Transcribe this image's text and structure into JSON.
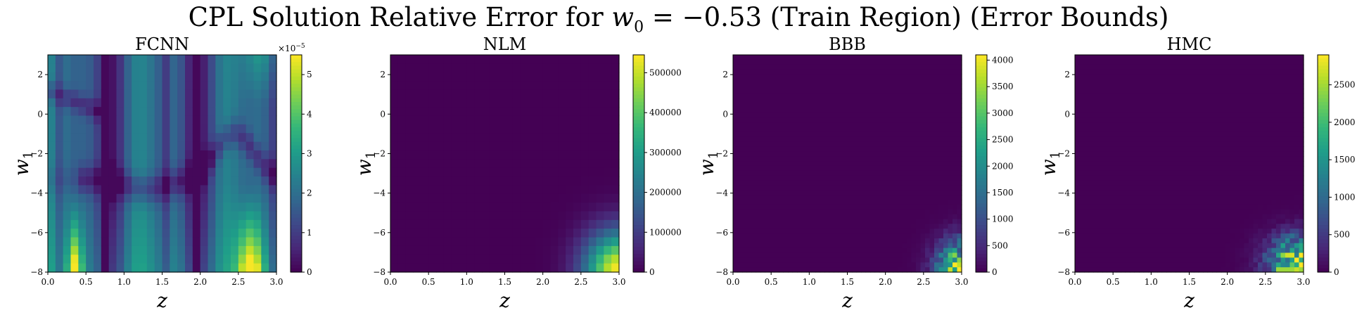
{
  "figure": {
    "title_prefix": "CPL Solution Relative Error for ",
    "title_math": "w",
    "title_math_sub": "0",
    "title_math_rest": " = −0.53",
    "title_suffix": " (Train Region) (Error Bounds)"
  },
  "colormap": [
    "#440154",
    "#482878",
    "#3e4989",
    "#31688e",
    "#26828e",
    "#1f9e89",
    "#35b779",
    "#6ece58",
    "#b5de2b",
    "#fde725"
  ],
  "chart_data": [
    {
      "type": "heatmap",
      "title": "FCNN",
      "xlabel": "z",
      "ylabel_base": "w",
      "ylabel_sub": "1",
      "xlim": [
        0,
        3
      ],
      "ylim": [
        -8,
        3
      ],
      "xticks": [
        0.0,
        0.5,
        1.0,
        1.5,
        2.0,
        2.5,
        3.0
      ],
      "xtick_labels": [
        "0.0",
        "0.5",
        "1.0",
        "1.5",
        "2.0",
        "2.5",
        "3.0"
      ],
      "yticks": [
        2,
        0,
        -2,
        -4,
        -6,
        -8
      ],
      "ytick_labels": [
        "2",
        "0",
        "−2",
        "−4",
        "−6",
        "−8"
      ],
      "grid": [
        30,
        25
      ],
      "colorbar": {
        "min": 0,
        "max": 5.5,
        "scale_label": "×10",
        "scale_exp": "−5",
        "ticks": [
          0,
          1,
          2,
          3,
          4,
          5
        ],
        "tick_labels": [
          "0",
          "1",
          "2",
          "3",
          "4",
          "5"
        ]
      },
      "pattern": "fcnn",
      "pattern_description": "vertical bands varying with z; dark stripes near z≈0.1, 0.75, 1.5; bright maxima near z≈0.35 and z≈2.65 at low w1; dark curved valley along w1≈-3 rising to w1≈-1 near z≈2.5"
    },
    {
      "type": "heatmap",
      "title": "NLM",
      "xlabel": "z",
      "ylabel_base": "w",
      "ylabel_sub": "1",
      "xlim": [
        0,
        3
      ],
      "ylim": [
        -8,
        3
      ],
      "xticks": [
        0.0,
        0.5,
        1.0,
        1.5,
        2.0,
        2.5,
        3.0
      ],
      "xtick_labels": [
        "0.0",
        "0.5",
        "1.0",
        "1.5",
        "2.0",
        "2.5",
        "3.0"
      ],
      "yticks": [
        2,
        0,
        -2,
        -4,
        -6,
        -8
      ],
      "ytick_labels": [
        "2",
        "0",
        "−2",
        "−4",
        "−6",
        "−8"
      ],
      "grid": [
        30,
        25
      ],
      "colorbar": {
        "min": 0,
        "max": 545000,
        "scale_label": "",
        "scale_exp": "",
        "ticks": [
          0,
          100000,
          200000,
          300000,
          400000,
          500000
        ],
        "tick_labels": [
          "0",
          "100000",
          "200000",
          "300000",
          "400000",
          "500000"
        ]
      },
      "pattern": "nlm",
      "pattern_description": "near zero everywhere; smooth growth toward the corner z=3, w1=-8 where it peaks"
    },
    {
      "type": "heatmap",
      "title": "BBB",
      "xlabel": "z",
      "ylabel_base": "w",
      "ylabel_sub": "1",
      "xlim": [
        0,
        3
      ],
      "ylim": [
        -8,
        3
      ],
      "xticks": [
        0.0,
        0.5,
        1.0,
        1.5,
        2.0,
        2.5,
        3.0
      ],
      "xtick_labels": [
        "0.0",
        "0.5",
        "1.0",
        "1.5",
        "2.0",
        "2.5",
        "3.0"
      ],
      "yticks": [
        2,
        0,
        -2,
        -4,
        -6,
        -8
      ],
      "ytick_labels": [
        "2",
        "0",
        "−2",
        "−4",
        "−6",
        "−8"
      ],
      "grid": [
        50,
        45
      ],
      "colorbar": {
        "min": 0,
        "max": 4100,
        "scale_label": "",
        "scale_exp": "",
        "ticks": [
          0,
          500,
          1000,
          1500,
          2000,
          2500,
          3000,
          3500,
          4000
        ],
        "tick_labels": [
          "0",
          "500",
          "1000",
          "1500",
          "2000",
          "2500",
          "3000",
          "3500",
          "4000"
        ]
      },
      "pattern": "bbb",
      "pattern_description": "near zero everywhere; noisy blocky increase in the corner z>2.5, w1<-6, peaking at z=3, w1=-8"
    },
    {
      "type": "heatmap",
      "title": "HMC",
      "xlabel": "z",
      "ylabel_base": "w",
      "ylabel_sub": "1",
      "xlim": [
        0,
        3
      ],
      "ylim": [
        -8,
        3
      ],
      "xticks": [
        0.0,
        0.5,
        1.0,
        1.5,
        2.0,
        2.5,
        3.0
      ],
      "xtick_labels": [
        "0.0",
        "0.5",
        "1.0",
        "1.5",
        "2.0",
        "2.5",
        "3.0"
      ],
      "yticks": [
        2,
        0,
        -2,
        -4,
        -6,
        -8
      ],
      "ytick_labels": [
        "2",
        "0",
        "−2",
        "−4",
        "−6",
        "−8"
      ],
      "grid": [
        50,
        45
      ],
      "colorbar": {
        "min": 0,
        "max": 2900,
        "scale_label": "",
        "scale_exp": "",
        "ticks": [
          0,
          500,
          1000,
          1500,
          2000,
          2500
        ],
        "tick_labels": [
          "0",
          "500",
          "1000",
          "1500",
          "2000",
          "2500"
        ]
      },
      "pattern": "hmc",
      "pattern_description": "near zero everywhere; noisy increase in the corner z>2.3, w1<-6, peaking near z≈2.9, w1≈-7.5 and at the bottom edge"
    }
  ]
}
